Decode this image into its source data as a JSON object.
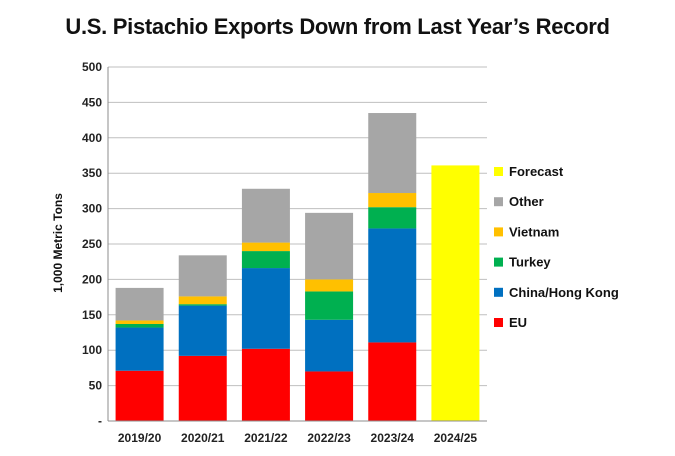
{
  "chart_data": {
    "type": "bar",
    "stacked": true,
    "title": "U.S. Pistachio Exports Down from Last Year’s Record",
    "ylabel": "1,000 Metric Tons",
    "xlabel": "",
    "ylim": [
      0,
      500
    ],
    "yticks": [
      0,
      50,
      100,
      150,
      200,
      250,
      300,
      350,
      400,
      450,
      500
    ],
    "ytick_labels": [
      "-",
      "50",
      "100",
      "150",
      "200",
      "250",
      "300",
      "350",
      "400",
      "450",
      "500"
    ],
    "grid": true,
    "legend_position": "right",
    "categories": [
      "2019/20",
      "2020/21",
      "2021/22",
      "2022/23",
      "2023/24",
      "2024/25"
    ],
    "series": [
      {
        "name": "EU",
        "color": "#FF0000",
        "values": [
          71,
          92,
          102,
          70,
          111,
          0
        ]
      },
      {
        "name": "China/Hong Kong",
        "color": "#0070C0",
        "values": [
          61,
          71,
          114,
          73,
          161,
          0
        ]
      },
      {
        "name": "Turkey",
        "color": "#00B050",
        "values": [
          5,
          2,
          24,
          40,
          30,
          0
        ]
      },
      {
        "name": "Vietnam",
        "color": "#FFC000",
        "values": [
          5,
          11,
          12,
          17,
          20,
          0
        ]
      },
      {
        "name": "Other",
        "color": "#A6A6A6",
        "values": [
          46,
          58,
          76,
          94,
          113,
          0
        ]
      },
      {
        "name": "Forecast",
        "color": "#FFFF00",
        "values": [
          0,
          0,
          0,
          0,
          0,
          361
        ]
      }
    ]
  }
}
